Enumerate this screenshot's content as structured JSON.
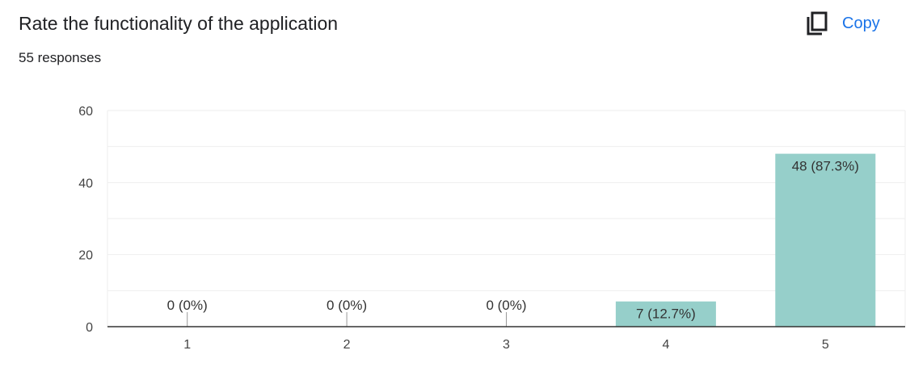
{
  "header": {
    "title": "Rate the functionality of the application",
    "responses": "55 responses",
    "copy_label": "Copy",
    "copy_icon": "copy-icon"
  },
  "colors": {
    "bar": "#96cfca",
    "accent": "#1a73e8",
    "axis": "#333333",
    "grid": "#eeeeee"
  },
  "chart_data": {
    "type": "bar",
    "categories": [
      "1",
      "2",
      "3",
      "4",
      "5"
    ],
    "values": [
      0,
      0,
      0,
      7,
      48
    ],
    "data_labels": [
      "0 (0%)",
      "0 (0%)",
      "0 (0%)",
      "7 (12.7%)",
      "48 (87.3%)"
    ],
    "ylim": [
      0,
      60
    ],
    "yticks": [
      0,
      20,
      40,
      60
    ],
    "grid": true,
    "title": "",
    "xlabel": "",
    "ylabel": ""
  }
}
